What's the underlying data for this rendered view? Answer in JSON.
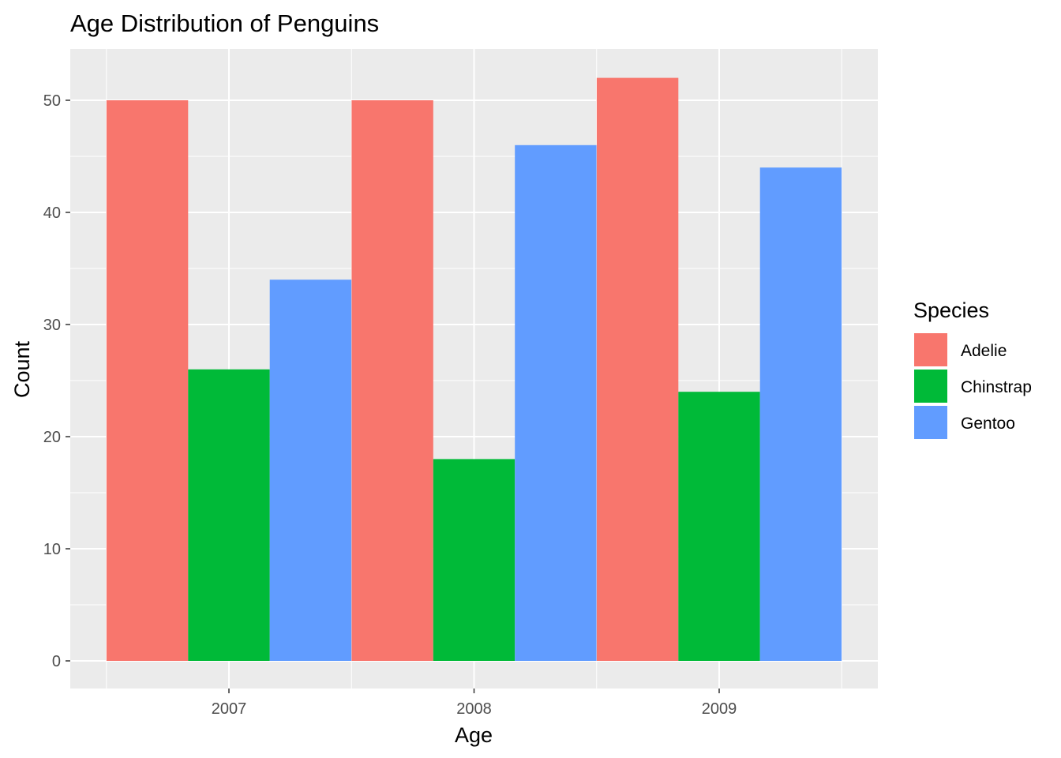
{
  "chart_data": {
    "type": "bar",
    "title": "Age Distribution of Penguins",
    "xlabel": "Age",
    "ylabel": "Count",
    "categories": [
      "2007",
      "2008",
      "2009"
    ],
    "series": [
      {
        "name": "Adelie",
        "values": [
          50,
          50,
          52
        ],
        "color": "#F8766D"
      },
      {
        "name": "Chinstrap",
        "values": [
          26,
          18,
          24
        ],
        "color": "#00BA38"
      },
      {
        "name": "Gentoo",
        "values": [
          34,
          46,
          44
        ],
        "color": "#619CFF"
      }
    ],
    "ylim": [
      0,
      54.6
    ],
    "yticks": [
      0,
      10,
      20,
      30,
      40,
      50
    ],
    "grid": true,
    "panel_background": "#EBEBEB",
    "legend": {
      "title": "Species",
      "position": "right"
    }
  }
}
